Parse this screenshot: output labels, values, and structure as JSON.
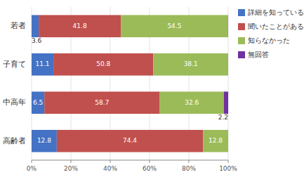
{
  "chart_data": {
    "type": "bar",
    "orientation": "horizontal",
    "stacked": true,
    "categories": [
      "若者",
      "子育て",
      "中高年",
      "高齢者"
    ],
    "series": [
      {
        "name": "詳細を知っている",
        "color": "#4472C4",
        "values": [
          3.6,
          11.1,
          6.5,
          12.8
        ]
      },
      {
        "name": "聞いたことがある",
        "color": "#C0504D",
        "values": [
          41.8,
          50.8,
          58.7,
          74.4
        ]
      },
      {
        "name": "知らなかった",
        "color": "#9BBB59",
        "values": [
          54.5,
          38.1,
          32.6,
          12.8
        ]
      },
      {
        "name": "無回答",
        "color": "#7030A0",
        "values": [
          0.1,
          0.0,
          2.2,
          0.0
        ],
        "value_labels": [
          null,
          null,
          "2.2",
          null
        ]
      }
    ],
    "xlim": [
      0,
      100
    ],
    "xticks": [
      {
        "value": 0,
        "label": "0%"
      },
      {
        "value": 20,
        "label": "20%"
      },
      {
        "value": 40,
        "label": "40%"
      },
      {
        "value": 60,
        "label": "60%"
      },
      {
        "value": 80,
        "label": "80%"
      },
      {
        "value": 100,
        "label": "100%"
      }
    ],
    "grid": true,
    "legend": "right",
    "data_labels": true
  }
}
